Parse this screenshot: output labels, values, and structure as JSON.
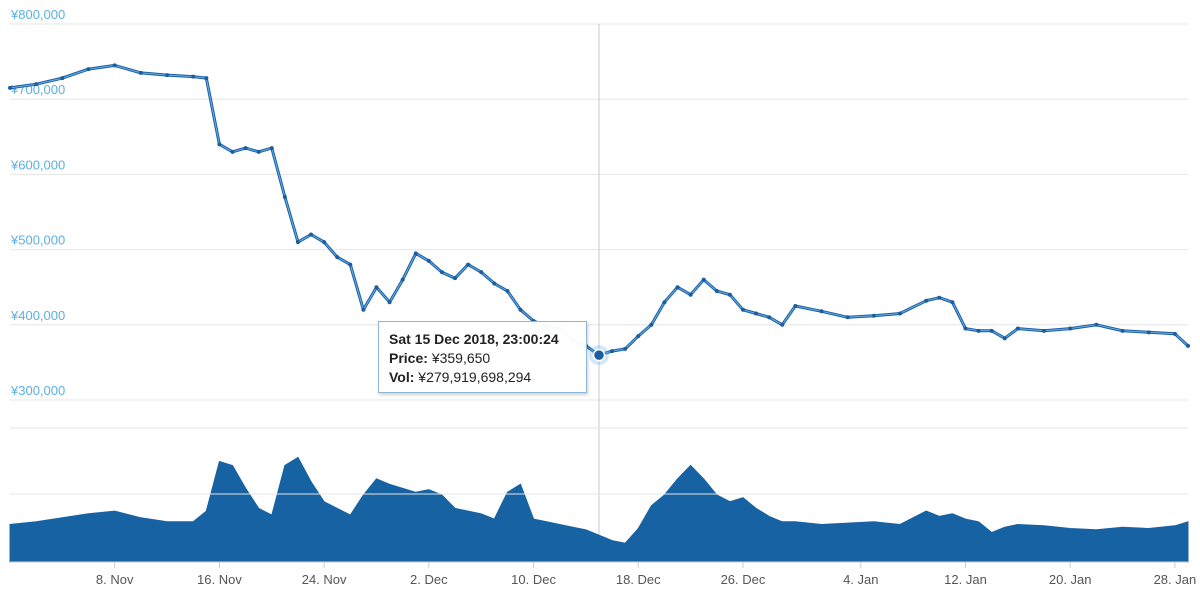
{
  "colors": {
    "line": "#1a5e9f",
    "line_light": "#6ab0ea",
    "volume": "#1762a2",
    "grid": "#e6e6e6",
    "axis_label": "#5bb0e3",
    "crosshair": "#c8c8c8"
  },
  "chart_data": [
    {
      "type": "line",
      "y_tick_labels": [
        "¥300,000",
        "¥400,000",
        "¥500,000",
        "¥600,000",
        "¥700,000",
        "¥800,000"
      ],
      "ylim": [
        300000,
        800000
      ],
      "x_tick_labels": [
        "8. Nov",
        "16. Nov",
        "24. Nov",
        "2. Dec",
        "10. Dec",
        "18. Dec",
        "26. Dec",
        "4. Jan",
        "12. Jan",
        "20. Jan",
        "28. Jan"
      ],
      "x_ticks": [
        "2018-11-08",
        "2018-11-16",
        "2018-11-24",
        "2018-12-02",
        "2018-12-10",
        "2018-12-18",
        "2018-12-26",
        "2019-01-04",
        "2019-01-12",
        "2019-01-20",
        "2019-01-28"
      ],
      "xlim": [
        "2018-10-31",
        "2019-01-29"
      ],
      "series": [
        {
          "x": [
            "2018-10-31",
            "2018-11-02",
            "2018-11-04",
            "2018-11-06",
            "2018-11-08",
            "2018-11-10",
            "2018-11-12",
            "2018-11-14",
            "2018-11-15",
            "2018-11-16",
            "2018-11-17",
            "2018-11-18",
            "2018-11-19",
            "2018-11-20",
            "2018-11-21",
            "2018-11-22",
            "2018-11-23",
            "2018-11-24",
            "2018-11-25",
            "2018-11-26",
            "2018-11-27",
            "2018-11-28",
            "2018-11-29",
            "2018-11-30",
            "2018-12-01",
            "2018-12-02",
            "2018-12-03",
            "2018-12-04",
            "2018-12-05",
            "2018-12-06",
            "2018-12-07",
            "2018-12-08",
            "2018-12-09",
            "2018-12-10",
            "2018-12-11",
            "2018-12-12",
            "2018-12-13",
            "2018-12-14",
            "2018-12-15",
            "2018-12-16",
            "2018-12-17",
            "2018-12-18",
            "2018-12-19",
            "2018-12-20",
            "2018-12-21",
            "2018-12-22",
            "2018-12-23",
            "2018-12-24",
            "2018-12-25",
            "2018-12-26",
            "2018-12-27",
            "2018-12-28",
            "2018-12-29",
            "2018-12-30",
            "2019-01-01",
            "2019-01-03",
            "2019-01-05",
            "2019-01-07",
            "2019-01-09",
            "2019-01-10",
            "2019-01-11",
            "2019-01-12",
            "2019-01-13",
            "2019-01-14",
            "2019-01-15",
            "2019-01-16",
            "2019-01-18",
            "2019-01-20",
            "2019-01-22",
            "2019-01-24",
            "2019-01-26",
            "2019-01-28",
            "2019-01-29"
          ],
          "y": [
            715000,
            720000,
            728000,
            740000,
            745000,
            735000,
            732000,
            730000,
            728000,
            640000,
            630000,
            635000,
            630000,
            635000,
            570000,
            510000,
            520000,
            510000,
            490000,
            480000,
            420000,
            450000,
            430000,
            460000,
            495000,
            485000,
            470000,
            462000,
            480000,
            470000,
            455000,
            445000,
            420000,
            405000,
            398000,
            395000,
            380000,
            372000,
            359650,
            365000,
            368000,
            385000,
            400000,
            430000,
            450000,
            440000,
            460000,
            445000,
            440000,
            420000,
            415000,
            410000,
            400000,
            425000,
            418000,
            410000,
            412000,
            415000,
            432000,
            436000,
            430000,
            395000,
            392000,
            392000,
            382000,
            395000,
            392000,
            395000,
            400000,
            392000,
            390000,
            388000,
            372000
          ]
        }
      ],
      "tooltip": {
        "date": "Sat 15 Dec 2018, 23:00:24",
        "price_label": "Price:",
        "price": "¥359,650",
        "vol_label": "Vol:",
        "vol": "¥279,919,698,294"
      },
      "highlight": {
        "x": "2018-12-15",
        "y": 359650
      }
    },
    {
      "type": "area",
      "x": [
        "2018-10-31",
        "2018-11-02",
        "2018-11-04",
        "2018-11-06",
        "2018-11-08",
        "2018-11-10",
        "2018-11-12",
        "2018-11-14",
        "2018-11-15",
        "2018-11-16",
        "2018-11-17",
        "2018-11-18",
        "2018-11-19",
        "2018-11-20",
        "2018-11-21",
        "2018-11-22",
        "2018-11-23",
        "2018-11-24",
        "2018-11-25",
        "2018-11-26",
        "2018-11-27",
        "2018-11-28",
        "2018-11-29",
        "2018-11-30",
        "2018-12-01",
        "2018-12-02",
        "2018-12-03",
        "2018-12-04",
        "2018-12-05",
        "2018-12-06",
        "2018-12-07",
        "2018-12-08",
        "2018-12-09",
        "2018-12-10",
        "2018-12-11",
        "2018-12-12",
        "2018-12-13",
        "2018-12-14",
        "2018-12-15",
        "2018-12-16",
        "2018-12-17",
        "2018-12-18",
        "2018-12-19",
        "2018-12-20",
        "2018-12-21",
        "2018-12-22",
        "2018-12-23",
        "2018-12-24",
        "2018-12-25",
        "2018-12-26",
        "2018-12-27",
        "2018-12-28",
        "2018-12-29",
        "2018-12-30",
        "2019-01-01",
        "2019-01-03",
        "2019-01-05",
        "2019-01-07",
        "2019-01-09",
        "2019-01-10",
        "2019-01-11",
        "2019-01-12",
        "2019-01-13",
        "2019-01-14",
        "2019-01-15",
        "2019-01-16",
        "2019-01-18",
        "2019-01-20",
        "2019-01-22",
        "2019-01-24",
        "2019-01-26",
        "2019-01-28",
        "2019-01-29"
      ],
      "values": [
        0.28,
        0.3,
        0.33,
        0.36,
        0.38,
        0.33,
        0.3,
        0.3,
        0.38,
        0.75,
        0.72,
        0.55,
        0.4,
        0.35,
        0.72,
        0.78,
        0.6,
        0.45,
        0.4,
        0.35,
        0.5,
        0.62,
        0.58,
        0.55,
        0.52,
        0.54,
        0.5,
        0.4,
        0.38,
        0.36,
        0.32,
        0.52,
        0.58,
        0.32,
        0.3,
        0.28,
        0.26,
        0.24,
        0.2,
        0.16,
        0.14,
        0.25,
        0.42,
        0.5,
        0.62,
        0.72,
        0.62,
        0.5,
        0.45,
        0.48,
        0.4,
        0.34,
        0.3,
        0.3,
        0.28,
        0.29,
        0.3,
        0.28,
        0.38,
        0.34,
        0.36,
        0.32,
        0.3,
        0.22,
        0.26,
        0.28,
        0.27,
        0.25,
        0.24,
        0.26,
        0.25,
        0.27,
        0.3
      ],
      "ylim": [
        0,
        1
      ]
    }
  ]
}
